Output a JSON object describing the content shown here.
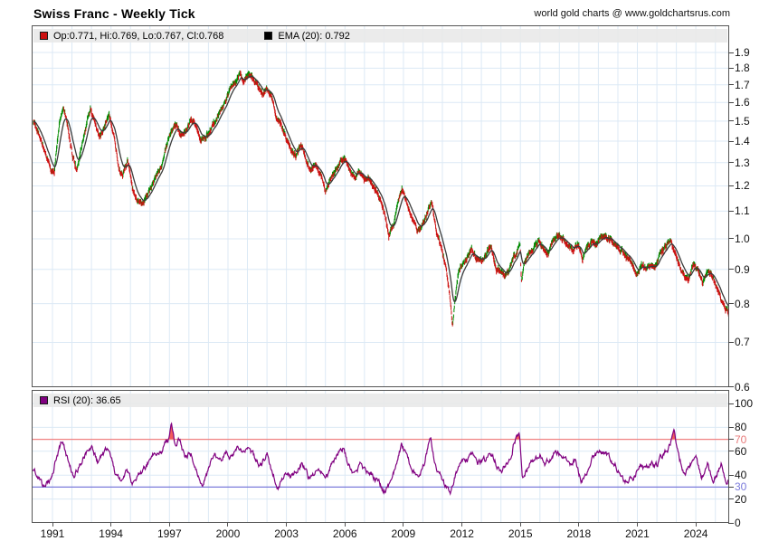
{
  "header": {
    "title": "Swiss Franc - Weekly Tick",
    "credit": "world gold charts @ www.goldchartsrus.com"
  },
  "price_panel": {
    "legend": {
      "ohlc_label": "Op:0.771, Hi:0.769, Lo:0.767, Cl:0.768",
      "ema_label": "EMA (20): 0.792"
    }
  },
  "rsi_panel": {
    "legend": {
      "label": "RSI (20): 36.65"
    }
  },
  "x_axis": {
    "start": 1990.0,
    "end": 2025.7,
    "year_labels": [
      1991,
      1994,
      1997,
      2000,
      2003,
      2006,
      2009,
      2012,
      2015,
      2018,
      2021,
      2024
    ]
  },
  "colors": {
    "up_tick": "#008a00",
    "down_tick": "#cc1111",
    "ema_line": "#3b3b3b",
    "rsi_line": "#800080",
    "overbought_line": "#f08080",
    "oversold_line": "#7b7bdb",
    "overbought_fill": "#f25c5c",
    "grid": "#dce9f5",
    "panel_border": "#555555",
    "legend_bg": "#e8e8e8",
    "ohlc_swatch": "#cc1111",
    "ema_swatch": "#000000",
    "rsi_swatch": "#800080",
    "overbought_label": "#e87a7a",
    "oversold_label": "#7b7bdb"
  },
  "chart_data": [
    {
      "type": "ohlc-tick",
      "name": "Swiss Franc weekly price",
      "x_unit": "year",
      "y_scale": "log",
      "y_ticks": [
        1.9,
        1.8,
        1.7,
        1.6,
        1.5,
        1.4,
        1.3,
        1.2,
        1.1,
        1.0,
        0.9,
        0.8,
        0.7,
        0.6
      ],
      "y_range": [
        0.6,
        1.9
      ],
      "last_ohlc": {
        "open": 0.771,
        "high": 0.769,
        "low": 0.767,
        "close": 0.768
      },
      "overlay": {
        "name": "EMA (20)",
        "period": 20,
        "last": 0.792
      },
      "close_anchors": [
        [
          1990.0,
          1.5
        ],
        [
          1990.3,
          1.44
        ],
        [
          1990.6,
          1.36
        ],
        [
          1990.9,
          1.28
        ],
        [
          1991.1,
          1.26
        ],
        [
          1991.35,
          1.5
        ],
        [
          1991.55,
          1.58
        ],
        [
          1991.8,
          1.46
        ],
        [
          1992.05,
          1.33
        ],
        [
          1992.25,
          1.27
        ],
        [
          1992.5,
          1.38
        ],
        [
          1992.75,
          1.49
        ],
        [
          1992.95,
          1.57
        ],
        [
          1993.15,
          1.49
        ],
        [
          1993.4,
          1.42
        ],
        [
          1993.65,
          1.47
        ],
        [
          1993.9,
          1.54
        ],
        [
          1994.15,
          1.43
        ],
        [
          1994.4,
          1.28
        ],
        [
          1994.6,
          1.24
        ],
        [
          1994.85,
          1.31
        ],
        [
          1995.1,
          1.19
        ],
        [
          1995.35,
          1.14
        ],
        [
          1995.6,
          1.13
        ],
        [
          1995.85,
          1.17
        ],
        [
          1996.1,
          1.21
        ],
        [
          1996.35,
          1.24
        ],
        [
          1996.6,
          1.28
        ],
        [
          1996.85,
          1.38
        ],
        [
          1997.1,
          1.45
        ],
        [
          1997.35,
          1.48
        ],
        [
          1997.6,
          1.42
        ],
        [
          1997.85,
          1.46
        ],
        [
          1998.1,
          1.51
        ],
        [
          1998.35,
          1.47
        ],
        [
          1998.6,
          1.39
        ],
        [
          1998.85,
          1.42
        ],
        [
          1999.1,
          1.46
        ],
        [
          1999.35,
          1.5
        ],
        [
          1999.6,
          1.55
        ],
        [
          1999.85,
          1.6
        ],
        [
          2000.1,
          1.66
        ],
        [
          2000.35,
          1.71
        ],
        [
          2000.6,
          1.76
        ],
        [
          2000.8,
          1.71
        ],
        [
          2001.05,
          1.77
        ],
        [
          2001.3,
          1.73
        ],
        [
          2001.55,
          1.69
        ],
        [
          2001.8,
          1.64
        ],
        [
          2002.0,
          1.68
        ],
        [
          2002.25,
          1.61
        ],
        [
          2002.5,
          1.52
        ],
        [
          2002.75,
          1.47
        ],
        [
          2003.0,
          1.42
        ],
        [
          2003.25,
          1.36
        ],
        [
          2003.5,
          1.33
        ],
        [
          2003.75,
          1.39
        ],
        [
          2004.0,
          1.31
        ],
        [
          2004.25,
          1.26
        ],
        [
          2004.5,
          1.3
        ],
        [
          2004.75,
          1.26
        ],
        [
          2005.0,
          1.18
        ],
        [
          2005.25,
          1.22
        ],
        [
          2005.5,
          1.26
        ],
        [
          2005.75,
          1.3
        ],
        [
          2006.0,
          1.31
        ],
        [
          2006.25,
          1.27
        ],
        [
          2006.5,
          1.23
        ],
        [
          2006.75,
          1.26
        ],
        [
          2007.0,
          1.24
        ],
        [
          2007.25,
          1.22
        ],
        [
          2007.5,
          1.2
        ],
        [
          2007.75,
          1.16
        ],
        [
          2008.0,
          1.1
        ],
        [
          2008.25,
          1.01
        ],
        [
          2008.5,
          1.05
        ],
        [
          2008.75,
          1.14
        ],
        [
          2008.95,
          1.19
        ],
        [
          2009.2,
          1.13
        ],
        [
          2009.45,
          1.08
        ],
        [
          2009.7,
          1.03
        ],
        [
          2009.95,
          1.05
        ],
        [
          2010.2,
          1.09
        ],
        [
          2010.45,
          1.14
        ],
        [
          2010.7,
          1.03
        ],
        [
          2010.95,
          0.97
        ],
        [
          2011.2,
          0.9
        ],
        [
          2011.42,
          0.8
        ],
        [
          2011.52,
          0.74
        ],
        [
          2011.62,
          0.79
        ],
        [
          2011.8,
          0.88
        ],
        [
          2012.0,
          0.91
        ],
        [
          2012.25,
          0.93
        ],
        [
          2012.5,
          0.96
        ],
        [
          2012.75,
          0.93
        ],
        [
          2013.0,
          0.92
        ],
        [
          2013.25,
          0.95
        ],
        [
          2013.5,
          0.97
        ],
        [
          2013.75,
          0.9
        ],
        [
          2014.0,
          0.89
        ],
        [
          2014.25,
          0.88
        ],
        [
          2014.5,
          0.91
        ],
        [
          2014.75,
          0.95
        ],
        [
          2014.98,
          0.99
        ],
        [
          2015.05,
          0.86
        ],
        [
          2015.2,
          0.92
        ],
        [
          2015.45,
          0.96
        ],
        [
          2015.7,
          0.97
        ],
        [
          2015.95,
          0.99
        ],
        [
          2016.2,
          0.97
        ],
        [
          2016.45,
          0.96
        ],
        [
          2016.7,
          0.99
        ],
        [
          2016.95,
          1.01
        ],
        [
          2017.2,
          1.0
        ],
        [
          2017.45,
          0.97
        ],
        [
          2017.7,
          0.96
        ],
        [
          2017.95,
          0.98
        ],
        [
          2018.2,
          0.93
        ],
        [
          2018.45,
          0.98
        ],
        [
          2018.7,
          1.0
        ],
        [
          2018.95,
          0.99
        ],
        [
          2019.2,
          1.01
        ],
        [
          2019.45,
          1.0
        ],
        [
          2019.7,
          0.99
        ],
        [
          2019.95,
          0.97
        ],
        [
          2020.2,
          0.96
        ],
        [
          2020.45,
          0.94
        ],
        [
          2020.7,
          0.91
        ],
        [
          2020.95,
          0.88
        ],
        [
          2021.2,
          0.92
        ],
        [
          2021.45,
          0.9
        ],
        [
          2021.7,
          0.92
        ],
        [
          2021.95,
          0.91
        ],
        [
          2022.2,
          0.95
        ],
        [
          2022.45,
          0.97
        ],
        [
          2022.7,
          0.99
        ],
        [
          2022.9,
          0.95
        ],
        [
          2023.1,
          0.92
        ],
        [
          2023.35,
          0.89
        ],
        [
          2023.6,
          0.87
        ],
        [
          2023.85,
          0.91
        ],
        [
          2024.1,
          0.9
        ],
        [
          2024.35,
          0.86
        ],
        [
          2024.6,
          0.89
        ],
        [
          2024.85,
          0.88
        ],
        [
          2025.05,
          0.84
        ],
        [
          2025.25,
          0.81
        ],
        [
          2025.45,
          0.79
        ],
        [
          2025.6,
          0.78
        ],
        [
          2025.7,
          0.768
        ]
      ]
    },
    {
      "type": "line",
      "name": "RSI (20)",
      "last": 36.65,
      "levels": {
        "overbought": 70,
        "oversold": 30
      },
      "y_ticks": [
        {
          "v": 100,
          "color": "#111111"
        },
        {
          "v": 80,
          "color": "#111111"
        },
        {
          "v": 70,
          "color": "#e87a7a"
        },
        {
          "v": 60,
          "color": "#111111"
        },
        {
          "v": 40,
          "color": "#111111"
        },
        {
          "v": 30,
          "color": "#7b7bdb"
        },
        {
          "v": 20,
          "color": "#111111"
        },
        {
          "v": 0,
          "color": "#111111"
        }
      ],
      "value_anchors": [
        [
          1990.0,
          45
        ],
        [
          1990.3,
          38
        ],
        [
          1990.6,
          28
        ],
        [
          1990.9,
          35
        ],
        [
          1991.2,
          55
        ],
        [
          1991.5,
          68
        ],
        [
          1991.8,
          52
        ],
        [
          1992.1,
          40
        ],
        [
          1992.4,
          48
        ],
        [
          1992.7,
          60
        ],
        [
          1993.0,
          65
        ],
        [
          1993.3,
          50
        ],
        [
          1993.6,
          58
        ],
        [
          1993.9,
          62
        ],
        [
          1994.2,
          42
        ],
        [
          1994.5,
          32
        ],
        [
          1994.8,
          45
        ],
        [
          1995.1,
          30
        ],
        [
          1995.4,
          38
        ],
        [
          1995.7,
          45
        ],
        [
          1996.0,
          52
        ],
        [
          1996.3,
          58
        ],
        [
          1996.6,
          62
        ],
        [
          1996.9,
          68
        ],
        [
          1997.1,
          83
        ],
        [
          1997.3,
          62
        ],
        [
          1997.55,
          69
        ],
        [
          1997.8,
          55
        ],
        [
          1998.1,
          60
        ],
        [
          1998.4,
          48
        ],
        [
          1998.7,
          30
        ],
        [
          1999.0,
          45
        ],
        [
          1999.3,
          58
        ],
        [
          1999.6,
          52
        ],
        [
          1999.9,
          60
        ],
        [
          2000.2,
          55
        ],
        [
          2000.5,
          62
        ],
        [
          2000.8,
          58
        ],
        [
          2001.1,
          63
        ],
        [
          2001.4,
          52
        ],
        [
          2001.7,
          48
        ],
        [
          2002.0,
          58
        ],
        [
          2002.3,
          42
        ],
        [
          2002.6,
          31
        ],
        [
          2002.9,
          40
        ],
        [
          2003.2,
          36
        ],
        [
          2003.5,
          42
        ],
        [
          2003.8,
          52
        ],
        [
          2004.1,
          38
        ],
        [
          2004.4,
          42
        ],
        [
          2004.7,
          46
        ],
        [
          2005.0,
          33
        ],
        [
          2005.3,
          48
        ],
        [
          2005.6,
          58
        ],
        [
          2005.9,
          62
        ],
        [
          2006.2,
          48
        ],
        [
          2006.5,
          42
        ],
        [
          2006.8,
          50
        ],
        [
          2007.1,
          44
        ],
        [
          2007.4,
          40
        ],
        [
          2007.7,
          34
        ],
        [
          2008.0,
          27
        ],
        [
          2008.3,
          32
        ],
        [
          2008.6,
          48
        ],
        [
          2008.9,
          65
        ],
        [
          2009.2,
          52
        ],
        [
          2009.5,
          44
        ],
        [
          2009.8,
          40
        ],
        [
          2010.1,
          52
        ],
        [
          2010.4,
          72
        ],
        [
          2010.7,
          45
        ],
        [
          2011.0,
          35
        ],
        [
          2011.4,
          25
        ],
        [
          2011.7,
          42
        ],
        [
          2012.0,
          55
        ],
        [
          2012.3,
          52
        ],
        [
          2012.6,
          58
        ],
        [
          2012.9,
          50
        ],
        [
          2013.2,
          52
        ],
        [
          2013.5,
          58
        ],
        [
          2013.8,
          48
        ],
        [
          2014.1,
          45
        ],
        [
          2014.4,
          52
        ],
        [
          2014.7,
          70
        ],
        [
          2014.95,
          72
        ],
        [
          2015.1,
          37
        ],
        [
          2015.4,
          48
        ],
        [
          2015.7,
          55
        ],
        [
          2016.0,
          58
        ],
        [
          2016.3,
          50
        ],
        [
          2016.6,
          56
        ],
        [
          2016.9,
          60
        ],
        [
          2017.2,
          55
        ],
        [
          2017.5,
          48
        ],
        [
          2017.8,
          52
        ],
        [
          2018.1,
          36
        ],
        [
          2018.4,
          42
        ],
        [
          2018.7,
          55
        ],
        [
          2019.0,
          58
        ],
        [
          2019.3,
          60
        ],
        [
          2019.6,
          52
        ],
        [
          2019.9,
          48
        ],
        [
          2020.2,
          40
        ],
        [
          2020.5,
          33
        ],
        [
          2020.8,
          38
        ],
        [
          2021.1,
          48
        ],
        [
          2021.4,
          45
        ],
        [
          2021.7,
          52
        ],
        [
          2022.0,
          48
        ],
        [
          2022.3,
          58
        ],
        [
          2022.6,
          62
        ],
        [
          2022.9,
          75
        ],
        [
          2023.1,
          58
        ],
        [
          2023.4,
          42
        ],
        [
          2023.7,
          50
        ],
        [
          2024.0,
          52
        ],
        [
          2024.3,
          38
        ],
        [
          2024.6,
          48
        ],
        [
          2024.9,
          31
        ],
        [
          2025.1,
          42
        ],
        [
          2025.3,
          49
        ],
        [
          2025.5,
          35
        ],
        [
          2025.7,
          36.65
        ]
      ]
    }
  ]
}
